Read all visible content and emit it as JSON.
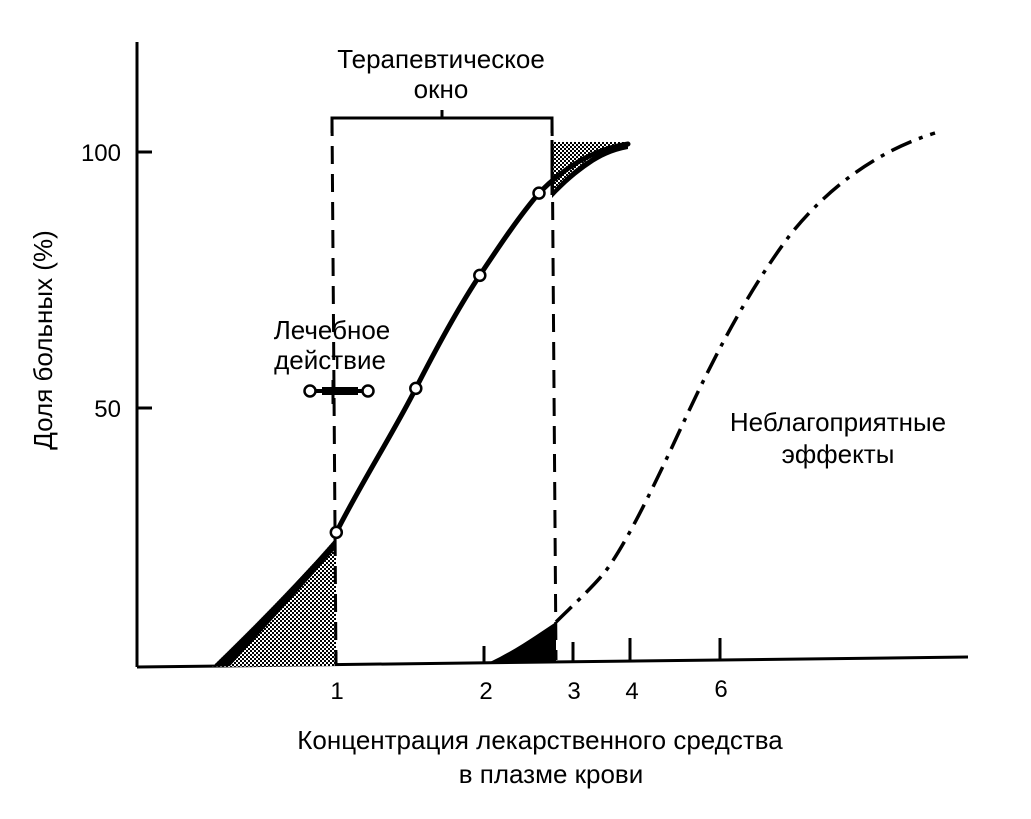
{
  "chart_data": {
    "type": "line",
    "title": "",
    "xlabel": [
      "Концентрация лекарственного средства",
      "в плазме крови"
    ],
    "ylabel": "Доля больных (%)",
    "ylim": [
      0,
      100
    ],
    "yticks": [
      50,
      100
    ],
    "xticks": [
      "1",
      "2",
      "3",
      "4",
      "6"
    ],
    "grid": false,
    "series": [
      {
        "name": "Лечебное действие",
        "style": "solid",
        "x": [
          0.5,
          1.0,
          1.5,
          2.0,
          2.7,
          3.0
        ],
        "y": [
          0,
          26,
          54,
          76,
          92,
          100
        ]
      },
      {
        "name": "Неблагоприятные эффекты",
        "style": "dash-dot",
        "x": [
          2.0,
          3.0,
          4.0,
          5.0,
          6.0,
          8.0
        ],
        "y": [
          0,
          10,
          27,
          50,
          75,
          100
        ]
      }
    ],
    "annotations": {
      "window_label": [
        "Терапевтическое",
        "окно"
      ],
      "window_range": [
        1,
        3
      ],
      "therapeutic_label": [
        "Лечебное",
        "действие"
      ],
      "adverse_label": [
        "Неблагоприятные",
        "эффекты"
      ]
    }
  }
}
